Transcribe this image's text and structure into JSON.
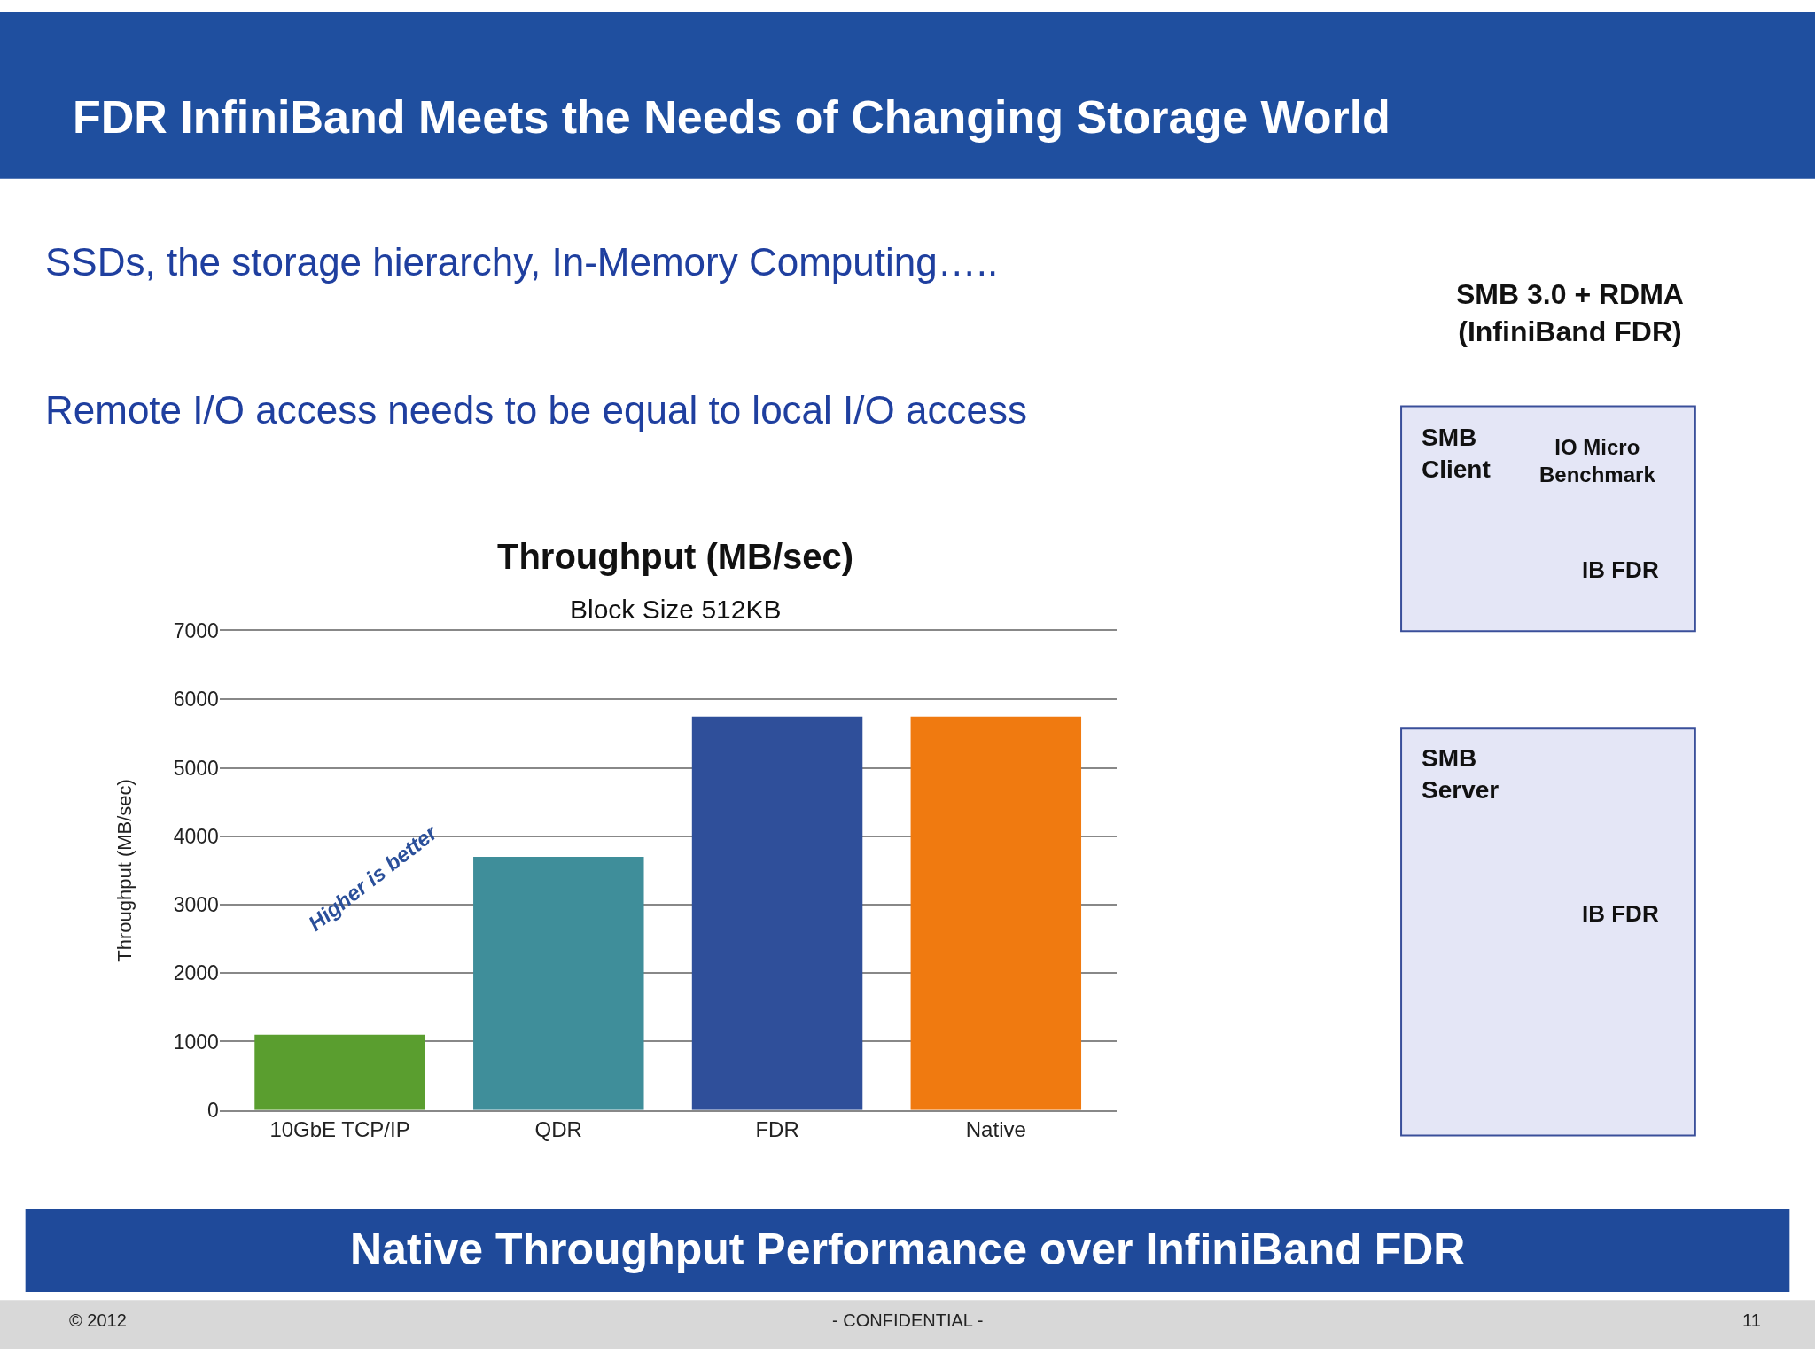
{
  "chart_data": [
    {
      "type": "bar",
      "title": "Throughput (MB/sec)",
      "subtitle": "Block Size 512KB",
      "ylabel": "Throughput (MB/sec)",
      "categories": [
        "10GbE TCP/IP",
        "QDR",
        "FDR",
        "Native"
      ],
      "values": [
        1100,
        3700,
        5750,
        5750
      ],
      "colors": [
        "#5a9e2f",
        "#3f8e9a",
        "#2f4f9a",
        "#f07a10"
      ],
      "ylim": [
        0,
        7000
      ],
      "yticks": [
        0,
        1000,
        2000,
        3000,
        4000,
        5000,
        6000,
        7000
      ],
      "grid": "y",
      "annotations": [
        "Higher is better"
      ]
    },
    {
      "type": "other",
      "title": "FDR InfiniBand Meets the Needs of Changing Storage World",
      "annotations": [
        "SSDs, the storage hierarchy, In-Memory Computing…..",
        "Remote I/O access needs to be equal to local I/O access",
        "SMB 3.0 + RDMA\n(InfiniBand FDR)",
        "SMB\nClient",
        "IO Micro\nBenchmark",
        "IB FDR",
        "SMB\nServer",
        "IB FDR",
        "Native Throughput Performance over InfiniBand FDR",
        "© 2012",
        "- CONFIDENTIAL -",
        "11"
      ]
    }
  ]
}
